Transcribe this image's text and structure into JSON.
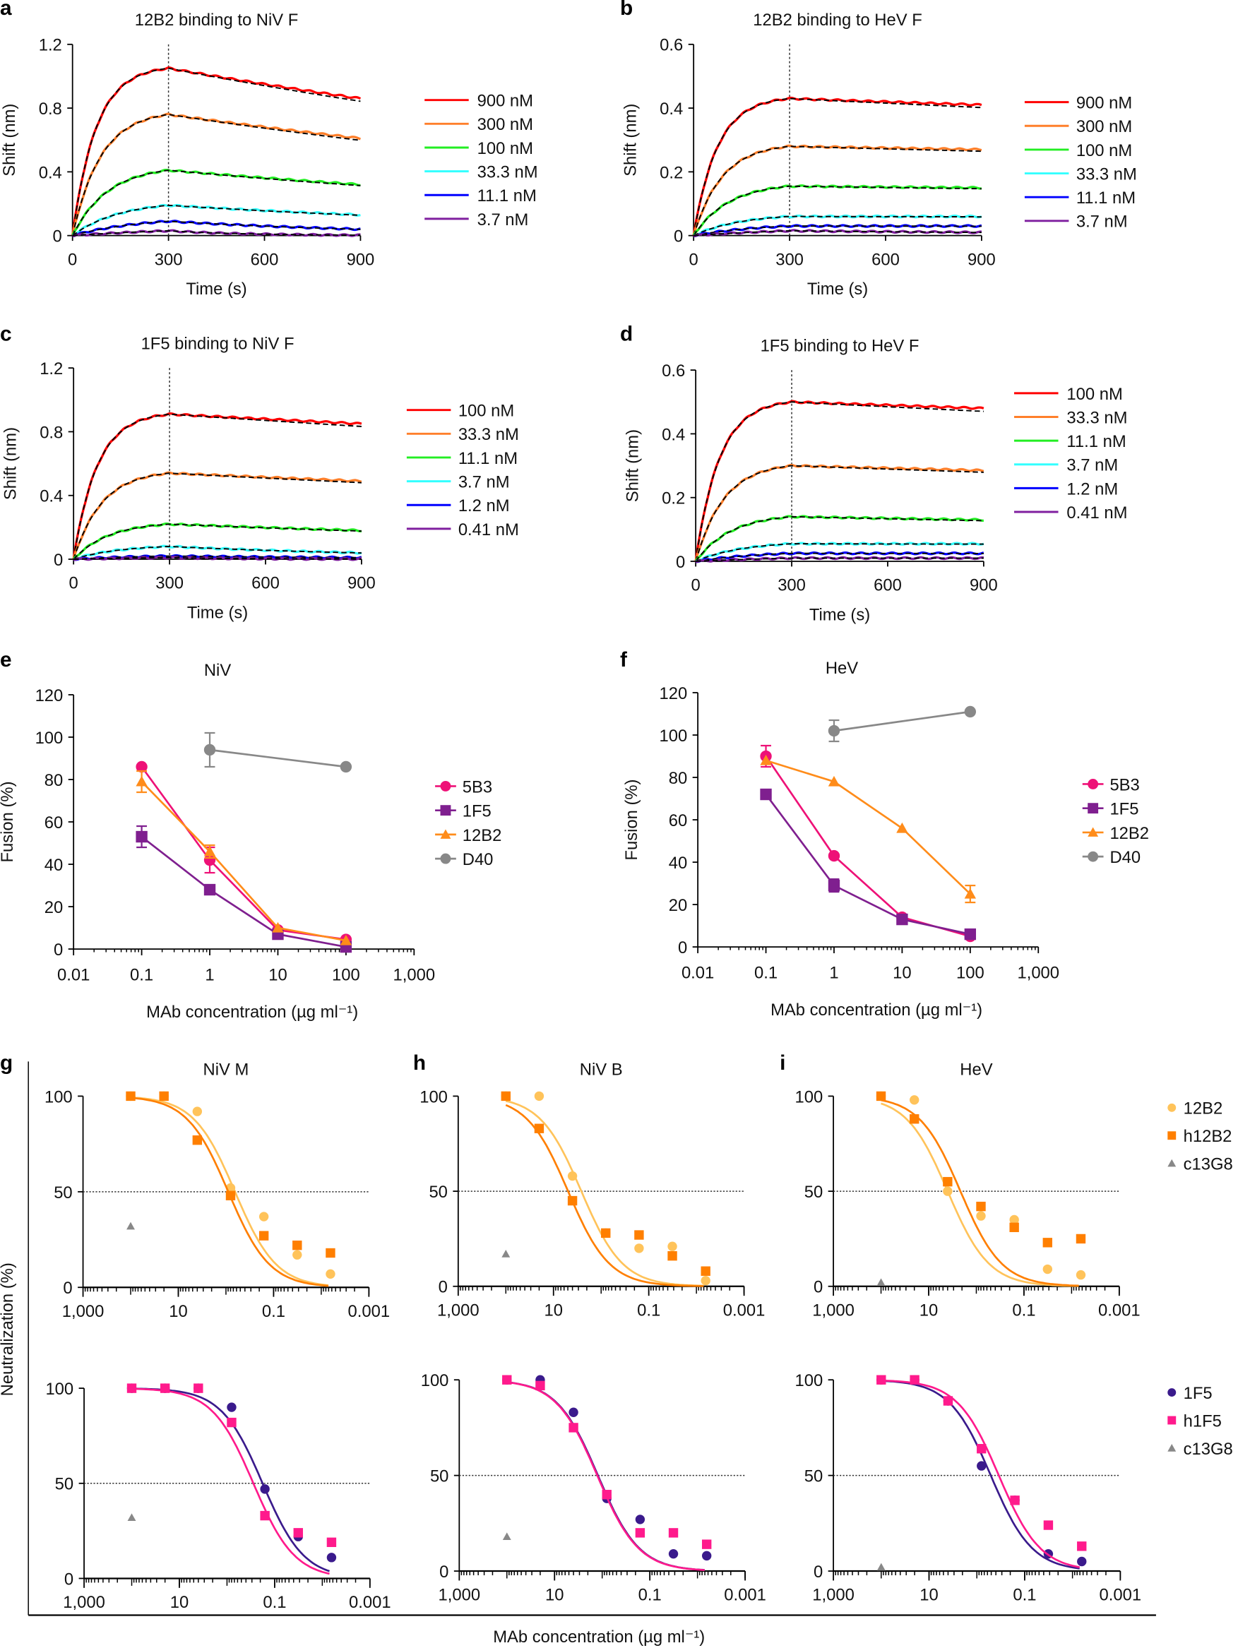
{
  "chart_data": [
    {
      "panel": "a",
      "type": "line",
      "title": "12B2 binding to NiV F",
      "xlabel": "Time (s)",
      "ylabel": "Shift (nm)",
      "xlim": [
        0,
        900
      ],
      "ylim": [
        0,
        1.2
      ],
      "xticks": [
        "0",
        "300",
        "600",
        "900"
      ],
      "yticks": [
        "0",
        "0.4",
        "0.8",
        "1.2"
      ],
      "legend": "right",
      "series": [
        {
          "name": "900 nM",
          "color": "#ff0000",
          "y_at_300": 1.05,
          "y_at_900": 0.86
        },
        {
          "name": "300 nM",
          "color": "#ff7f2a",
          "y_at_300": 0.76,
          "y_at_900": 0.61
        },
        {
          "name": "100 nM",
          "color": "#22ee22",
          "y_at_300": 0.41,
          "y_at_900": 0.32
        },
        {
          "name": "33.3 nM",
          "color": "#33ffff",
          "y_at_300": 0.19,
          "y_at_900": 0.13
        },
        {
          "name": "11.1 nM",
          "color": "#0000ff",
          "y_at_300": 0.09,
          "y_at_900": 0.04
        },
        {
          "name": "3.7 nM",
          "color": "#7f1f9f",
          "y_at_300": 0.03,
          "y_at_900": 0.0
        }
      ]
    },
    {
      "panel": "b",
      "type": "line",
      "title": "12B2 binding to HeV F",
      "xlabel": "Time (s)",
      "ylabel": "Shift (nm)",
      "xlim": [
        0,
        900
      ],
      "ylim": [
        0,
        0.6
      ],
      "xticks": [
        "0",
        "300",
        "600",
        "900"
      ],
      "yticks": [
        "0",
        "0.2",
        "0.4",
        "0.6"
      ],
      "legend": "right",
      "series": [
        {
          "name": "900 nM",
          "color": "#ff0000",
          "y_at_300": 0.43,
          "y_at_900": 0.41
        },
        {
          "name": "300 nM",
          "color": "#ff7f2a",
          "y_at_300": 0.28,
          "y_at_900": 0.27
        },
        {
          "name": "100 nM",
          "color": "#22ee22",
          "y_at_300": 0.155,
          "y_at_900": 0.15
        },
        {
          "name": "33.3 nM",
          "color": "#33ffff",
          "y_at_300": 0.06,
          "y_at_900": 0.06
        },
        {
          "name": "11.1 nM",
          "color": "#0000ff",
          "y_at_300": 0.03,
          "y_at_900": 0.03
        },
        {
          "name": "3.7 nM",
          "color": "#7f1f9f",
          "y_at_300": 0.015,
          "y_at_900": 0.01
        }
      ]
    },
    {
      "panel": "c",
      "type": "line",
      "title": "1F5 binding to NiV F",
      "xlabel": "Time (s)",
      "ylabel": "Shift (nm)",
      "xlim": [
        0,
        900
      ],
      "ylim": [
        0,
        1.2
      ],
      "xticks": [
        "0",
        "300",
        "600",
        "900"
      ],
      "yticks": [
        "0",
        "0.4",
        "0.8",
        "1.2"
      ],
      "legend": "right",
      "series": [
        {
          "name": "100 nM",
          "color": "#ff0000",
          "y_at_300": 0.91,
          "y_at_900": 0.85
        },
        {
          "name": "33.3 nM",
          "color": "#ff7f2a",
          "y_at_300": 0.54,
          "y_at_900": 0.49
        },
        {
          "name": "11.1 nM",
          "color": "#22ee22",
          "y_at_300": 0.22,
          "y_at_900": 0.18
        },
        {
          "name": "3.7 nM",
          "color": "#33ffff",
          "y_at_300": 0.08,
          "y_at_900": 0.04
        },
        {
          "name": "1.2 nM",
          "color": "#0000ff",
          "y_at_300": 0.02,
          "y_at_900": 0.01
        },
        {
          "name": "0.41 nM",
          "color": "#7f1f9f",
          "y_at_300": 0.01,
          "y_at_900": 0.0
        }
      ]
    },
    {
      "panel": "d",
      "type": "line",
      "title": "1F5 binding to HeV F",
      "xlabel": "Time (s)",
      "ylabel": "Shift (nm)",
      "xlim": [
        0,
        900
      ],
      "ylim": [
        0,
        0.6
      ],
      "xticks": [
        "0",
        "300",
        "600",
        "900"
      ],
      "yticks": [
        "0",
        "0.2",
        "0.4",
        "0.6"
      ],
      "legend": "right",
      "series": [
        {
          "name": "100 nM",
          "color": "#ff0000",
          "y_at_300": 0.5,
          "y_at_900": 0.48
        },
        {
          "name": "33.3 nM",
          "color": "#ff7f2a",
          "y_at_300": 0.3,
          "y_at_900": 0.285
        },
        {
          "name": "11.1 nM",
          "color": "#22ee22",
          "y_at_300": 0.14,
          "y_at_900": 0.13
        },
        {
          "name": "3.7 nM",
          "color": "#33ffff",
          "y_at_300": 0.055,
          "y_at_900": 0.055
        },
        {
          "name": "1.2 nM",
          "color": "#0000ff",
          "y_at_300": 0.025,
          "y_at_900": 0.025
        },
        {
          "name": "0.41 nM",
          "color": "#7f1f9f",
          "y_at_300": 0.01,
          "y_at_900": 0.01
        }
      ]
    },
    {
      "panel": "e",
      "type": "line",
      "title": "NiV",
      "xlabel": "MAb concentration (µg ml⁻¹)",
      "ylabel": "Fusion (%)",
      "xscale": "log",
      "xlim": [
        0.01,
        1000
      ],
      "ylim": [
        0,
        120
      ],
      "xticks": [
        "0.01",
        "0.1",
        "1",
        "10",
        "100",
        "1,000"
      ],
      "yticks": [
        "0",
        "20",
        "40",
        "60",
        "80",
        "100",
        "120"
      ],
      "legend": "right",
      "series": [
        {
          "name": "5B3",
          "color": "#ee1177",
          "marker": "circle",
          "x": [
            0.1,
            1,
            10,
            100
          ],
          "y": [
            86,
            42,
            9,
            4.5
          ],
          "err": [
            0,
            6,
            0,
            0
          ]
        },
        {
          "name": "1F5",
          "color": "#7f1f8f",
          "marker": "square",
          "x": [
            0.1,
            1,
            10,
            100
          ],
          "y": [
            53,
            28,
            7,
            1
          ],
          "err": [
            5,
            0,
            0,
            0
          ]
        },
        {
          "name": "12B2",
          "color": "#ff8c1a",
          "marker": "triangle",
          "x": [
            0.1,
            1,
            10,
            100
          ],
          "y": [
            79,
            46,
            10,
            4
          ],
          "err": [
            5,
            3,
            0,
            0
          ]
        },
        {
          "name": "D40",
          "color": "#888888",
          "marker": "circle",
          "x": [
            1,
            100
          ],
          "y": [
            94,
            86
          ],
          "err": [
            8,
            0
          ]
        }
      ]
    },
    {
      "panel": "f",
      "type": "line",
      "title": "HeV",
      "xlabel": "MAb concentration (µg ml⁻¹)",
      "ylabel": "Fusion (%)",
      "xscale": "log",
      "xlim": [
        0.01,
        1000
      ],
      "ylim": [
        0,
        120
      ],
      "xticks": [
        "0.01",
        "0.1",
        "1",
        "10",
        "100",
        "1,000"
      ],
      "yticks": [
        "0",
        "20",
        "40",
        "60",
        "80",
        "100",
        "120"
      ],
      "legend": "right",
      "series": [
        {
          "name": "5B3",
          "color": "#ee1177",
          "marker": "circle",
          "x": [
            0.1,
            1,
            10,
            100
          ],
          "y": [
            90,
            43,
            14,
            5
          ],
          "err": [
            5,
            0,
            0,
            0
          ]
        },
        {
          "name": "1F5",
          "color": "#7f1f8f",
          "marker": "square",
          "x": [
            0.1,
            1,
            10,
            100
          ],
          "y": [
            72,
            29,
            13,
            6
          ],
          "err": [
            0,
            3,
            0,
            0
          ]
        },
        {
          "name": "12B2",
          "color": "#ff8c1a",
          "marker": "triangle",
          "x": [
            0.1,
            1,
            10,
            100
          ],
          "y": [
            88,
            78,
            56,
            25
          ],
          "err": [
            0,
            0,
            0,
            4
          ]
        },
        {
          "name": "D40",
          "color": "#888888",
          "marker": "circle",
          "x": [
            1,
            100
          ],
          "y": [
            102,
            111
          ],
          "err": [
            5,
            0
          ]
        }
      ]
    },
    {
      "panel": "g",
      "row": "top",
      "type": "scatter",
      "title": "NiV M",
      "xscale": "log",
      "xreversed": true,
      "xlim": [
        1000,
        0.001
      ],
      "ylim": [
        0,
        100
      ],
      "xticks": [
        "1,000",
        "10",
        "0.1",
        "0.001"
      ],
      "yticks": [
        "0",
        "50",
        "100"
      ],
      "reference_line": 50,
      "series": [
        {
          "name": "12B2",
          "color": "#ffc35a",
          "marker": "circle",
          "fit": true,
          "x": [
            100,
            20,
            4,
            0.8,
            0.16,
            0.032,
            0.0064
          ],
          "y": [
            100,
            100,
            92,
            52,
            37,
            17,
            7
          ]
        },
        {
          "name": "h12B2",
          "color": "#ff7f00",
          "marker": "square",
          "fit": true,
          "x": [
            100,
            20,
            4,
            0.8,
            0.16,
            0.032,
            0.0064
          ],
          "y": [
            100,
            100,
            77,
            48,
            27,
            22,
            18
          ]
        },
        {
          "name": "c13G8",
          "color": "#888888",
          "marker": "triangle",
          "fit": false,
          "x": [
            100
          ],
          "y": [
            32
          ]
        }
      ]
    },
    {
      "panel": "h",
      "row": "top",
      "type": "scatter",
      "title": "NiV B",
      "xscale": "log",
      "xreversed": true,
      "xlim": [
        1000,
        0.001
      ],
      "ylim": [
        0,
        100
      ],
      "xticks": [
        "1,000",
        "10",
        "0.1",
        "0.001"
      ],
      "yticks": [
        "0",
        "50",
        "100"
      ],
      "reference_line": 50,
      "series": [
        {
          "name": "12B2",
          "color": "#ffc35a",
          "marker": "circle",
          "fit": true,
          "x": [
            100,
            20,
            4,
            0.8,
            0.16,
            0.032,
            0.0064
          ],
          "y": [
            100,
            100,
            58,
            28,
            20,
            21,
            3
          ]
        },
        {
          "name": "h12B2",
          "color": "#ff7f00",
          "marker": "square",
          "fit": true,
          "x": [
            100,
            20,
            4,
            0.8,
            0.16,
            0.032,
            0.0064
          ],
          "y": [
            100,
            83,
            45,
            28,
            27,
            16,
            8
          ]
        },
        {
          "name": "c13G8",
          "color": "#888888",
          "marker": "triangle",
          "fit": false,
          "x": [
            100
          ],
          "y": [
            17
          ]
        }
      ]
    },
    {
      "panel": "i",
      "row": "top",
      "type": "scatter",
      "title": "HeV",
      "xscale": "log",
      "xreversed": true,
      "xlim": [
        1000,
        0.001
      ],
      "ylim": [
        0,
        100
      ],
      "xticks": [
        "1,000",
        "10",
        "0.1",
        "0.001"
      ],
      "yticks": [
        "0",
        "50",
        "100"
      ],
      "reference_line": 50,
      "legend": "right",
      "series": [
        {
          "name": "12B2",
          "color": "#ffc35a",
          "marker": "circle",
          "fit": true,
          "x": [
            100,
            20,
            4,
            0.8,
            0.16,
            0.032,
            0.0064
          ],
          "y": [
            100,
            98,
            50,
            37,
            35,
            9,
            6
          ]
        },
        {
          "name": "h12B2",
          "color": "#ff7f00",
          "marker": "square",
          "fit": true,
          "x": [
            100,
            20,
            4,
            0.8,
            0.16,
            0.032,
            0.0064
          ],
          "y": [
            100,
            88,
            55,
            42,
            31,
            23,
            25
          ]
        },
        {
          "name": "c13G8",
          "color": "#888888",
          "marker": "triangle",
          "fit": false,
          "x": [
            100
          ],
          "y": [
            2
          ]
        }
      ]
    },
    {
      "panel": "g",
      "row": "bottom",
      "type": "scatter",
      "title": "",
      "xscale": "log",
      "xreversed": true,
      "xlim": [
        1000,
        0.001
      ],
      "ylim": [
        0,
        100
      ],
      "xticks": [
        "1,000",
        "10",
        "0.1",
        "0.001"
      ],
      "yticks": [
        "0",
        "50",
        "100"
      ],
      "reference_line": 50,
      "series": [
        {
          "name": "1F5",
          "color": "#3a1a8c",
          "marker": "circle",
          "fit": true,
          "x": [
            100,
            20,
            4,
            0.8,
            0.16,
            0.032,
            0.0064
          ],
          "y": [
            100,
            100,
            100,
            90,
            47,
            22,
            11
          ]
        },
        {
          "name": "h1F5",
          "color": "#ff1a8c",
          "marker": "square",
          "fit": true,
          "x": [
            100,
            20,
            4,
            0.8,
            0.16,
            0.032,
            0.0064
          ],
          "y": [
            100,
            100,
            100,
            82,
            33,
            24,
            19
          ]
        },
        {
          "name": "c13G8",
          "color": "#888888",
          "marker": "triangle",
          "fit": false,
          "x": [
            100
          ],
          "y": [
            32
          ]
        }
      ]
    },
    {
      "panel": "h",
      "row": "bottom",
      "type": "scatter",
      "title": "",
      "xscale": "log",
      "xreversed": true,
      "xlim": [
        1000,
        0.001
      ],
      "ylim": [
        0,
        100
      ],
      "xticks": [
        "1,000",
        "10",
        "0.1",
        "0.001"
      ],
      "yticks": [
        "0",
        "50",
        "100"
      ],
      "reference_line": 50,
      "series": [
        {
          "name": "1F5",
          "color": "#3a1a8c",
          "marker": "circle",
          "fit": true,
          "x": [
            100,
            20,
            4,
            0.8,
            0.16,
            0.032,
            0.0064
          ],
          "y": [
            100,
            100,
            83,
            38,
            27,
            9,
            8
          ]
        },
        {
          "name": "h1F5",
          "color": "#ff1a8c",
          "marker": "square",
          "fit": true,
          "x": [
            100,
            20,
            4,
            0.8,
            0.16,
            0.032,
            0.0064
          ],
          "y": [
            100,
            97,
            75,
            40,
            20,
            20,
            14
          ]
        },
        {
          "name": "c13G8",
          "color": "#888888",
          "marker": "triangle",
          "fit": false,
          "x": [
            100
          ],
          "y": [
            18
          ]
        }
      ]
    },
    {
      "panel": "i",
      "row": "bottom",
      "type": "scatter",
      "title": "",
      "xscale": "log",
      "xreversed": true,
      "xlim": [
        1000,
        0.001
      ],
      "ylim": [
        0,
        100
      ],
      "xticks": [
        "1,000",
        "10",
        "0.1",
        "0.001"
      ],
      "yticks": [
        "0",
        "50",
        "100"
      ],
      "reference_line": 50,
      "legend": "right",
      "series": [
        {
          "name": "1F5",
          "color": "#3a1a8c",
          "marker": "circle",
          "fit": true,
          "x": [
            100,
            20,
            4,
            0.8,
            0.16,
            0.032,
            0.0064
          ],
          "y": [
            100,
            100,
            89,
            55,
            37,
            9,
            5
          ]
        },
        {
          "name": "h1F5",
          "color": "#ff1a8c",
          "marker": "square",
          "fit": true,
          "x": [
            100,
            20,
            4,
            0.8,
            0.16,
            0.032,
            0.0064
          ],
          "y": [
            100,
            100,
            89,
            64,
            37,
            24,
            13
          ]
        },
        {
          "name": "c13G8",
          "color": "#888888",
          "marker": "triangle",
          "fit": false,
          "x": [
            100
          ],
          "y": [
            2
          ]
        }
      ]
    }
  ],
  "neutralization": {
    "ylabel": "Neutralization (%)",
    "xlabel": "MAb concentration (µg ml⁻¹)"
  }
}
